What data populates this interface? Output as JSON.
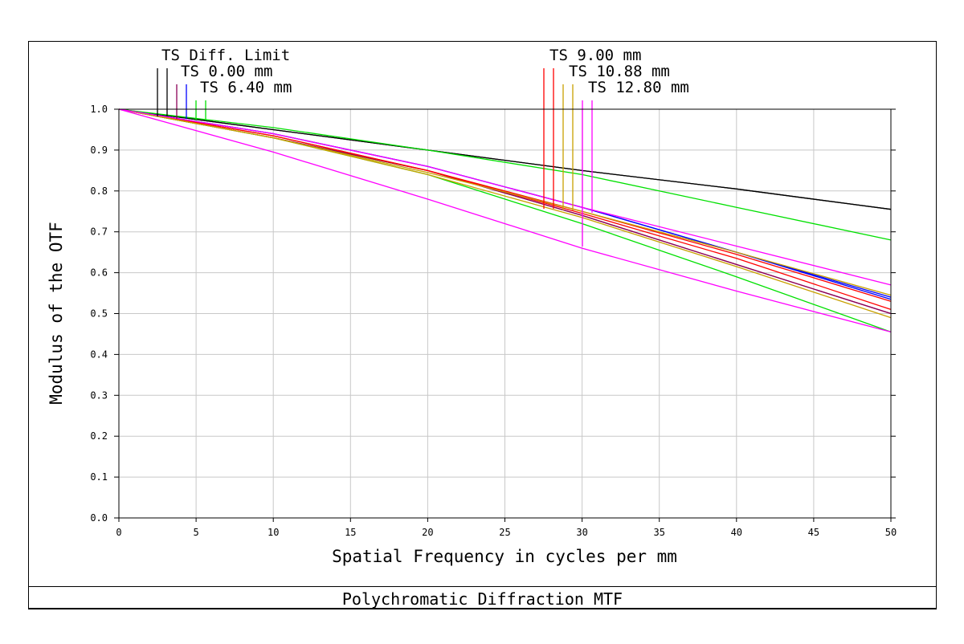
{
  "colors": {
    "grid": "#c8c8c8",
    "axis": "#000000",
    "diff_limit": "#000000",
    "field_0": "#8b0057",
    "field_1": "#0000ff",
    "field_2": "#00e000",
    "field_3": "#ff0000",
    "field_4": "#c8a000",
    "field_5": "#ff00ff"
  },
  "chart_data": {
    "type": "line",
    "title": "Polychromatic Diffraction MTF",
    "xlabel": "Spatial Frequency in cycles per mm",
    "ylabel": "Modulus of the OTF",
    "xlim": [
      0,
      50
    ],
    "ylim": [
      0,
      1
    ],
    "grid": true,
    "xticks": [
      "0",
      "5",
      "10",
      "15",
      "20",
      "25",
      "30",
      "35",
      "40",
      "45",
      "50"
    ],
    "yticks": [
      "0.0",
      "0.1",
      "0.2",
      "0.3",
      "0.4",
      "0.5",
      "0.6",
      "0.7",
      "0.8",
      "0.9",
      "1.0"
    ],
    "legend": [
      {
        "label": "TS Diff. Limit"
      },
      {
        "label": "TS 0.00 mm"
      },
      {
        "label": "TS 6.40 mm"
      },
      {
        "label": "TS 9.00 mm"
      },
      {
        "label": "TS 10.88 mm"
      },
      {
        "label": "TS 12.80 mm"
      }
    ],
    "series": [
      {
        "field": "TS Diff. Limit",
        "orientation": "T",
        "color": "#000000",
        "x": [
          0,
          10,
          20,
          30,
          40,
          50
        ],
        "y": [
          1.0,
          0.95,
          0.9,
          0.85,
          0.805,
          0.755
        ]
      },
      {
        "field": "TS Diff. Limit",
        "orientation": "S",
        "color": "#000000",
        "x": [
          0,
          10,
          20,
          30,
          40,
          50
        ],
        "y": [
          1.0,
          0.95,
          0.9,
          0.85,
          0.805,
          0.755
        ]
      },
      {
        "field": "TS 0.00 mm",
        "orientation": "T",
        "color": "#8b0057",
        "x": [
          0,
          10,
          20,
          30,
          40,
          50
        ],
        "y": [
          1.0,
          0.93,
          0.85,
          0.74,
          0.62,
          0.5
        ]
      },
      {
        "field": "TS 0.00 mm",
        "orientation": "S",
        "color": "#8b0057",
        "x": [
          0,
          10,
          20,
          30,
          40,
          50
        ],
        "y": [
          1.0,
          0.93,
          0.85,
          0.74,
          0.62,
          0.5
        ]
      },
      {
        "field": "TS 6.40 mm",
        "orientation": "T",
        "color": "#0000ff",
        "x": [
          0,
          10,
          20,
          30,
          40,
          50
        ],
        "y": [
          1.0,
          0.94,
          0.86,
          0.76,
          0.65,
          0.535
        ]
      },
      {
        "field": "TS 6.40 mm",
        "orientation": "S",
        "color": "#0000ff",
        "x": [
          0,
          10,
          20,
          30,
          40,
          50
        ],
        "y": [
          1.0,
          0.94,
          0.86,
          0.76,
          0.65,
          0.54
        ]
      },
      {
        "field": "TS 9.00 mm",
        "orientation": "T",
        "color": "#00e000",
        "x": [
          0,
          10,
          20,
          30,
          40,
          50
        ],
        "y": [
          1.0,
          0.955,
          0.9,
          0.84,
          0.76,
          0.68
        ]
      },
      {
        "field": "TS 9.00 mm",
        "orientation": "S",
        "color": "#00e000",
        "x": [
          0,
          10,
          20,
          30,
          40,
          50
        ],
        "y": [
          1.0,
          0.93,
          0.84,
          0.72,
          0.59,
          0.455
        ]
      },
      {
        "field": "TS 10.88 mm",
        "orientation": "T",
        "color": "#ff0000",
        "x": [
          0,
          10,
          20,
          30,
          40,
          50
        ],
        "y": [
          1.0,
          0.935,
          0.85,
          0.745,
          0.635,
          0.51
        ]
      },
      {
        "field": "TS 10.88 mm",
        "orientation": "S",
        "color": "#ff0000",
        "x": [
          0,
          10,
          20,
          30,
          40,
          50
        ],
        "y": [
          1.0,
          0.935,
          0.85,
          0.75,
          0.645,
          0.53
        ]
      },
      {
        "field": "TS 12.80 mm",
        "orientation": "T",
        "color": "#c8a000",
        "x": [
          0,
          10,
          20,
          30,
          40,
          50
        ],
        "y": [
          1.0,
          0.93,
          0.84,
          0.735,
          0.615,
          0.49
        ]
      },
      {
        "field": "TS 12.80 mm",
        "orientation": "S",
        "color": "#c8a000",
        "x": [
          0,
          10,
          20,
          30,
          40,
          50
        ],
        "y": [
          1.0,
          0.93,
          0.845,
          0.75,
          0.65,
          0.545
        ]
      },
      {
        "field": "TS 12.80 mm",
        "orientation": "T2",
        "color": "#ff00ff",
        "x": [
          0,
          10,
          20,
          30,
          40,
          50
        ],
        "y": [
          1.0,
          0.895,
          0.78,
          0.66,
          0.555,
          0.455
        ]
      },
      {
        "field": "TS 12.80 mm",
        "orientation": "S2",
        "color": "#ff00ff",
        "x": [
          0,
          10,
          20,
          30,
          40,
          50
        ],
        "y": [
          1.0,
          0.94,
          0.86,
          0.76,
          0.665,
          0.57
        ]
      }
    ]
  }
}
